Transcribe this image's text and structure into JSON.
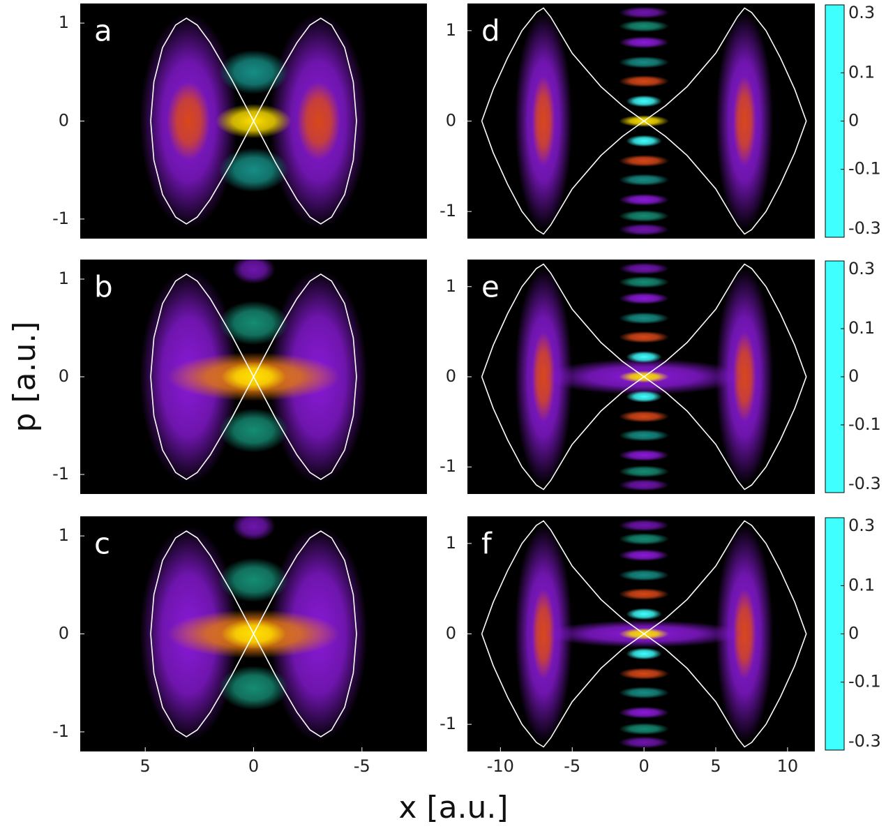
{
  "figure": {
    "xlabel": "x [a.u.]",
    "ylabel": "p [a.u.]",
    "colormap": {
      "values": [
        -0.3,
        -0.15,
        -0.05,
        0,
        0.05,
        0.15,
        0.3
      ],
      "colors": [
        "#40ffff",
        "#1a8fb0",
        "#148a5a",
        "#000000",
        "#8a1ad8",
        "#d84818",
        "#ffe000"
      ]
    }
  },
  "chart_data": [
    {
      "type": "heatmap",
      "label": "a",
      "xlim": [
        8,
        -8
      ],
      "ylim": [
        -1.2,
        1.2
      ],
      "yticks": [
        -1,
        0,
        1
      ],
      "blobs": {
        "x": [
          3,
          -3,
          3,
          -3,
          0,
          0,
          0
        ],
        "p": [
          0,
          0,
          0,
          0,
          0.5,
          -0.5,
          0
        ],
        "value": [
          0.05,
          0.05,
          0.15,
          0.15,
          -0.1,
          -0.1,
          0.3
        ],
        "width": [
          4.5,
          4.5,
          2,
          2,
          3.2,
          3.2,
          3.5
        ],
        "height": [
          2.2,
          2.2,
          0.8,
          0.8,
          0.45,
          0.45,
          0.35
        ]
      },
      "separatrix": {
        "x": [
          4.75,
          4.6,
          4.2,
          3.6,
          3.1,
          2.6,
          2,
          1,
          0,
          -1,
          -2,
          -2.6,
          -3.1,
          -3.6,
          -4.2,
          -4.6,
          -4.75,
          -4.6,
          -4.2,
          -3.6,
          -3.1,
          -2.6,
          -2,
          -1,
          0,
          1,
          2,
          2.6,
          3.1,
          3.6,
          4.2,
          4.6,
          4.75
        ],
        "p": [
          0,
          0.4,
          0.75,
          0.98,
          1.05,
          0.98,
          0.8,
          0.42,
          0,
          -0.42,
          -0.8,
          -0.98,
          -1.05,
          -0.98,
          -0.75,
          -0.4,
          0,
          0.4,
          0.75,
          0.98,
          1.05,
          0.98,
          0.8,
          0.42,
          0,
          -0.42,
          -0.8,
          -0.98,
          -1.05,
          -0.98,
          -0.75,
          -0.4,
          0
        ]
      }
    },
    {
      "type": "heatmap",
      "label": "b",
      "xlim": [
        8,
        -8
      ],
      "ylim": [
        -1.2,
        1.2
      ],
      "yticks": [
        -1,
        0,
        1
      ],
      "blobs": {
        "x": [
          3,
          -3,
          0,
          0,
          0,
          0,
          0
        ],
        "p": [
          0,
          0,
          1.1,
          0.55,
          -0.55,
          0,
          0
        ],
        "value": [
          0.05,
          0.05,
          0.04,
          -0.08,
          -0.08,
          0.2,
          0.3
        ],
        "width": [
          4.5,
          4.5,
          2,
          3.2,
          3.2,
          8,
          3
        ],
        "height": [
          2.2,
          2.2,
          0.3,
          0.45,
          0.45,
          0.5,
          0.3
        ]
      },
      "separatrix": {
        "x": [
          4.75,
          4.6,
          4.2,
          3.6,
          3.1,
          2.6,
          2,
          1,
          0,
          -1,
          -2,
          -2.6,
          -3.1,
          -3.6,
          -4.2,
          -4.6,
          -4.75,
          -4.6,
          -4.2,
          -3.6,
          -3.1,
          -2.6,
          -2,
          -1,
          0,
          1,
          2,
          2.6,
          3.1,
          3.6,
          4.2,
          4.6,
          4.75
        ],
        "p": [
          0,
          0.4,
          0.75,
          0.98,
          1.05,
          0.98,
          0.8,
          0.42,
          0,
          -0.42,
          -0.8,
          -0.98,
          -1.05,
          -0.98,
          -0.75,
          -0.4,
          0,
          0.4,
          0.75,
          0.98,
          1.05,
          0.98,
          0.8,
          0.42,
          0,
          -0.42,
          -0.8,
          -0.98,
          -1.05,
          -0.98,
          -0.75,
          -0.4,
          0
        ]
      }
    },
    {
      "type": "heatmap",
      "label": "c",
      "xlim": [
        8,
        -8
      ],
      "ylim": [
        -1.2,
        1.2
      ],
      "yticks": [
        -1,
        0,
        1
      ],
      "xticks": [
        5,
        0,
        -5
      ],
      "blobs": {
        "x": [
          3,
          -3,
          0,
          0,
          0,
          0,
          0
        ],
        "p": [
          0,
          0,
          1.1,
          0.55,
          -0.55,
          0,
          0
        ],
        "value": [
          0.05,
          0.05,
          0.04,
          -0.08,
          -0.08,
          0.2,
          0.3
        ],
        "width": [
          4.5,
          4.5,
          2,
          3.2,
          3.2,
          8,
          3
        ],
        "height": [
          2.2,
          2.2,
          0.3,
          0.45,
          0.45,
          0.5,
          0.3
        ]
      },
      "separatrix": {
        "x": [
          4.75,
          4.6,
          4.2,
          3.6,
          3.1,
          2.6,
          2,
          1,
          0,
          -1,
          -2,
          -2.6,
          -3.1,
          -3.6,
          -4.2,
          -4.6,
          -4.75,
          -4.6,
          -4.2,
          -3.6,
          -3.1,
          -2.6,
          -2,
          -1,
          0,
          1,
          2,
          2.6,
          3.1,
          3.6,
          4.2,
          4.6,
          4.75
        ],
        "p": [
          0,
          0.4,
          0.75,
          0.98,
          1.05,
          0.98,
          0.8,
          0.42,
          0,
          -0.42,
          -0.8,
          -0.98,
          -1.05,
          -0.98,
          -0.75,
          -0.4,
          0,
          0.4,
          0.75,
          0.98,
          1.05,
          0.98,
          0.8,
          0.42,
          0,
          -0.42,
          -0.8,
          -0.98,
          -1.05,
          -0.98,
          -0.75,
          -0.4,
          0
        ]
      }
    },
    {
      "type": "heatmap",
      "label": "d",
      "xlim": [
        -12.3,
        11.9
      ],
      "ylim": [
        -1.3,
        1.3
      ],
      "yticks": [
        -1,
        0,
        1
      ],
      "colorbar": {
        "lim": [
          -0.3,
          0.3
        ],
        "ticks": [
          -0.3,
          -0.1,
          0,
          0.1,
          0.3
        ]
      },
      "blobs": {
        "x": [
          -7,
          7,
          -7,
          7,
          0,
          0,
          0,
          0,
          0,
          0,
          0,
          0,
          0,
          0,
          0,
          0,
          0
        ],
        "p": [
          0,
          0,
          0,
          0,
          1.2,
          1.05,
          0.87,
          0.65,
          0.44,
          0.22,
          0,
          -0.22,
          -0.44,
          -0.65,
          -0.87,
          -1.05,
          -1.2
        ],
        "value": [
          0.05,
          0.05,
          0.15,
          0.15,
          0.04,
          -0.08,
          0.05,
          -0.1,
          0.15,
          -0.3,
          0.3,
          -0.3,
          0.15,
          -0.1,
          0.05,
          -0.08,
          0.04
        ],
        "width": [
          4,
          4,
          1.6,
          1.6,
          3.5,
          3.5,
          3.5,
          3.5,
          3.5,
          2.5,
          3.5,
          2.5,
          3.5,
          3.5,
          3.5,
          3.5,
          3.5
        ],
        "height": [
          2.4,
          2.4,
          1,
          1,
          0.13,
          0.13,
          0.13,
          0.13,
          0.13,
          0.13,
          0.13,
          0.13,
          0.13,
          0.13,
          0.13,
          0.13,
          0.13
        ]
      },
      "separatrix": {
        "x": [
          -11.3,
          -10.5,
          -9.5,
          -8.5,
          -7.5,
          -7,
          -6.5,
          -5,
          -3,
          -1.5,
          0,
          1.5,
          3,
          5,
          6.5,
          7,
          7.5,
          8.5,
          9.5,
          10.5,
          11.3,
          10.5,
          9.5,
          8.5,
          7.5,
          7,
          6.5,
          5,
          3,
          1.5,
          0,
          -1.5,
          -3,
          -5,
          -6.5,
          -7,
          -7.5,
          -8.5,
          -9.5,
          -10.5,
          -11.3
        ],
        "p": [
          0,
          0.35,
          0.7,
          1,
          1.2,
          1.25,
          1.15,
          0.75,
          0.38,
          0.17,
          0,
          -0.17,
          -0.38,
          -0.75,
          -1.15,
          -1.25,
          -1.2,
          -1,
          -0.7,
          -0.35,
          0,
          0.35,
          0.7,
          1,
          1.2,
          1.25,
          1.15,
          0.75,
          0.38,
          0.17,
          0,
          -0.17,
          -0.38,
          -0.75,
          -1.15,
          -1.25,
          -1.2,
          -1,
          -0.7,
          -0.35,
          0
        ]
      }
    },
    {
      "type": "heatmap",
      "label": "e",
      "xlim": [
        -12.3,
        11.9
      ],
      "ylim": [
        -1.3,
        1.3
      ],
      "yticks": [
        -1,
        0,
        1
      ],
      "colorbar": {
        "lim": [
          -0.3,
          0.3
        ],
        "ticks": [
          -0.3,
          -0.1,
          0,
          0.1,
          0.3
        ]
      },
      "blobs": {
        "x": [
          -7,
          7,
          -7,
          7,
          0,
          0,
          0,
          0,
          0,
          0,
          0,
          0,
          0,
          0,
          0,
          0,
          0,
          0
        ],
        "p": [
          0,
          0,
          0,
          0,
          0,
          1.2,
          1.05,
          0.87,
          0.65,
          0.44,
          0.22,
          0,
          -0.22,
          -0.44,
          -0.65,
          -0.87,
          -1.05,
          -1.2
        ],
        "value": [
          0.05,
          0.05,
          0.15,
          0.15,
          0.05,
          0.04,
          -0.08,
          0.05,
          -0.1,
          0.15,
          -0.3,
          0.3,
          -0.3,
          0.15,
          -0.1,
          0.05,
          -0.08,
          0.04
        ],
        "width": [
          4,
          4,
          1.6,
          1.6,
          14,
          3.5,
          3.5,
          3.5,
          3.5,
          3.5,
          2.5,
          3.5,
          2.5,
          3.5,
          3.5,
          3.5,
          3.5,
          3.5
        ],
        "height": [
          2.4,
          2.4,
          1,
          1,
          0.4,
          0.13,
          0.13,
          0.13,
          0.13,
          0.13,
          0.13,
          0.13,
          0.13,
          0.13,
          0.13,
          0.13,
          0.13,
          0.13
        ]
      },
      "separatrix": {
        "x": [
          -11.3,
          -10.5,
          -9.5,
          -8.5,
          -7.5,
          -7,
          -6.5,
          -5,
          -3,
          -1.5,
          0,
          1.5,
          3,
          5,
          6.5,
          7,
          7.5,
          8.5,
          9.5,
          10.5,
          11.3,
          10.5,
          9.5,
          8.5,
          7.5,
          7,
          6.5,
          5,
          3,
          1.5,
          0,
          -1.5,
          -3,
          -5,
          -6.5,
          -7,
          -7.5,
          -8.5,
          -9.5,
          -10.5,
          -11.3
        ],
        "p": [
          0,
          0.35,
          0.7,
          1,
          1.2,
          1.25,
          1.15,
          0.75,
          0.38,
          0.17,
          0,
          -0.17,
          -0.38,
          -0.75,
          -1.15,
          -1.25,
          -1.2,
          -1,
          -0.7,
          -0.35,
          0,
          0.35,
          0.7,
          1,
          1.2,
          1.25,
          1.15,
          0.75,
          0.38,
          0.17,
          0,
          -0.17,
          -0.38,
          -0.75,
          -1.15,
          -1.25,
          -1.2,
          -1,
          -0.7,
          -0.35,
          0
        ]
      }
    },
    {
      "type": "heatmap",
      "label": "f",
      "xlim": [
        -12.3,
        11.9
      ],
      "ylim": [
        -1.3,
        1.3
      ],
      "yticks": [
        -1,
        0,
        1
      ],
      "xticks": [
        -10,
        -5,
        0,
        5,
        10
      ],
      "colorbar": {
        "lim": [
          -0.3,
          0.3
        ],
        "ticks": [
          -0.3,
          -0.1,
          0,
          0.1,
          0.3
        ]
      },
      "blobs": {
        "x": [
          -7,
          7,
          -7,
          7,
          0,
          0,
          0,
          0,
          0,
          0,
          0,
          0,
          0,
          0,
          0,
          0,
          0,
          0
        ],
        "p": [
          0,
          0,
          0,
          0,
          0,
          1.2,
          1.05,
          0.87,
          0.65,
          0.44,
          0.22,
          0,
          -0.22,
          -0.44,
          -0.65,
          -0.87,
          -1.05,
          -1.2
        ],
        "value": [
          0.05,
          0.05,
          0.15,
          0.15,
          0.05,
          0.04,
          -0.08,
          0.05,
          -0.1,
          0.15,
          -0.3,
          0.3,
          -0.3,
          0.15,
          -0.1,
          0.05,
          -0.08,
          0.04
        ],
        "width": [
          4,
          4,
          1.6,
          1.6,
          14,
          3.5,
          3.5,
          3.5,
          3.5,
          3.5,
          2.5,
          3.5,
          2.5,
          3.5,
          3.5,
          3.5,
          3.5,
          3.5
        ],
        "height": [
          2.4,
          2.4,
          1,
          1,
          0.3,
          0.13,
          0.13,
          0.13,
          0.13,
          0.13,
          0.13,
          0.13,
          0.13,
          0.13,
          0.13,
          0.13,
          0.13,
          0.13
        ]
      },
      "separatrix": {
        "x": [
          -11.3,
          -10.5,
          -9.5,
          -8.5,
          -7.5,
          -7,
          -6.5,
          -5,
          -3,
          -1.5,
          0,
          1.5,
          3,
          5,
          6.5,
          7,
          7.5,
          8.5,
          9.5,
          10.5,
          11.3,
          10.5,
          9.5,
          8.5,
          7.5,
          7,
          6.5,
          5,
          3,
          1.5,
          0,
          -1.5,
          -3,
          -5,
          -6.5,
          -7,
          -7.5,
          -8.5,
          -9.5,
          -10.5,
          -11.3
        ],
        "p": [
          0,
          0.35,
          0.7,
          1,
          1.2,
          1.25,
          1.15,
          0.75,
          0.38,
          0.17,
          0,
          -0.17,
          -0.38,
          -0.75,
          -1.15,
          -1.25,
          -1.2,
          -1,
          -0.7,
          -0.35,
          0,
          0.35,
          0.7,
          1,
          1.2,
          1.25,
          1.15,
          0.75,
          0.38,
          0.17,
          0,
          -0.17,
          -0.38,
          -0.75,
          -1.15,
          -1.25,
          -1.2,
          -1,
          -0.7,
          -0.35,
          0
        ]
      }
    }
  ]
}
